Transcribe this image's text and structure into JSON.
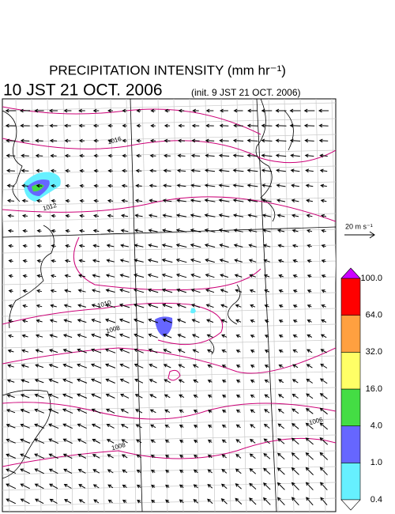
{
  "header": {
    "title": "PRECIPITATION INTENSITY (mm hr⁻¹)",
    "valid_time": "10 JST 21 OCT. 2006",
    "init_time": "(init. 9 JST 21 OCT. 2006)"
  },
  "wind_scale": {
    "label": "20 m s⁻¹"
  },
  "colorbar": {
    "levels": [
      0.4,
      {
        "value": 1,
        "label": "1.0"
      },
      {
        "value": 4,
        "label": "4.0"
      },
      {
        "value": 16,
        "label": "16.0"
      },
      {
        "value": 32,
        "label": "32.0"
      },
      {
        "value": 64,
        "label": "64.0"
      },
      {
        "value": 100,
        "label": "100.0"
      }
    ],
    "colors": [
      "#66f0ff",
      "#6666ff",
      "#44dd44",
      "#ffff66",
      "#ffa040",
      "#ff0000"
    ],
    "over_color": "#cc00ff",
    "under_color": "#ffffff"
  },
  "isobar_labels": [
    "1016",
    "1012",
    "1010",
    "1008",
    "1008",
    "1006"
  ]
}
